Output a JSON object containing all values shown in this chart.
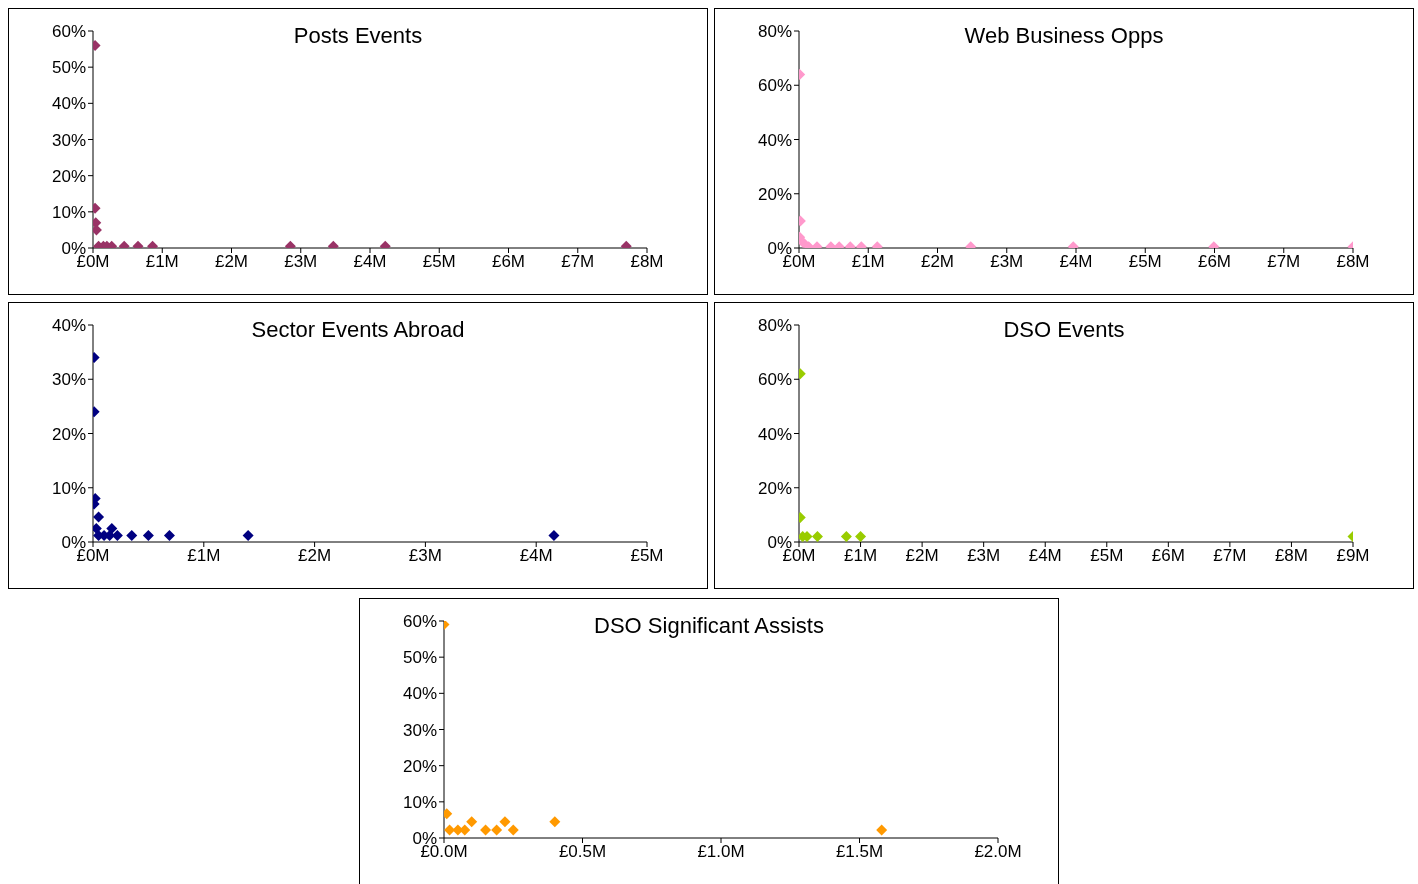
{
  "chart_data": [
    {
      "type": "scatter",
      "title": "Posts Events",
      "marker": "diamond",
      "color": "#993366",
      "x": [
        0.03,
        0.03,
        0.04,
        0.05,
        0.08,
        0.15,
        0.2,
        0.27,
        0.45,
        0.65,
        0.86,
        2.85,
        3.47,
        4.22,
        7.7
      ],
      "values": [
        56,
        11,
        7,
        5,
        0.5,
        0.5,
        0.5,
        0.5,
        0.5,
        0.5,
        0.5,
        0.5,
        0.5,
        0.5,
        0.5
      ],
      "xlim": [
        0,
        8
      ],
      "xticks": [
        {
          "value": 0,
          "label": "£0M"
        },
        {
          "value": 1,
          "label": "£1M"
        },
        {
          "value": 2,
          "label": "£2M"
        },
        {
          "value": 3,
          "label": "£3M"
        },
        {
          "value": 4,
          "label": "£4M"
        },
        {
          "value": 5,
          "label": "£5M"
        },
        {
          "value": 6,
          "label": "£6M"
        },
        {
          "value": 7,
          "label": "£7M"
        },
        {
          "value": 8,
          "label": "£8M"
        }
      ],
      "ylim": [
        0,
        60
      ],
      "yticks": [
        {
          "value": 0,
          "label": "0%"
        },
        {
          "value": 10,
          "label": "10%"
        },
        {
          "value": 20,
          "label": "20%"
        },
        {
          "value": 30,
          "label": "30%"
        },
        {
          "value": 40,
          "label": "40%"
        },
        {
          "value": 50,
          "label": "50%"
        },
        {
          "value": 60,
          "label": "60%"
        }
      ]
    },
    {
      "type": "scatter",
      "title": "Web Business Opps",
      "marker": "diamond",
      "color": "#ff99cc",
      "x": [
        0.01,
        0.02,
        0.01,
        0.06,
        0.14,
        0.26,
        0.46,
        0.58,
        0.74,
        0.9,
        1.13,
        2.48,
        3.96,
        5.99,
        8.0
      ],
      "values": [
        64,
        10,
        4,
        2,
        0.5,
        0.5,
        0.5,
        0.5,
        0.5,
        0.5,
        0.5,
        0.5,
        0.5,
        0.5,
        0.5
      ],
      "xlim": [
        0,
        8
      ],
      "xticks": [
        {
          "value": 0,
          "label": "£0M"
        },
        {
          "value": 1,
          "label": "£1M"
        },
        {
          "value": 2,
          "label": "£2M"
        },
        {
          "value": 3,
          "label": "£3M"
        },
        {
          "value": 4,
          "label": "£4M"
        },
        {
          "value": 5,
          "label": "£5M"
        },
        {
          "value": 6,
          "label": "£6M"
        },
        {
          "value": 7,
          "label": "£7M"
        },
        {
          "value": 8,
          "label": "£8M"
        }
      ],
      "ylim": [
        0,
        80
      ],
      "yticks": [
        {
          "value": 0,
          "label": "0%"
        },
        {
          "value": 20,
          "label": "20%"
        },
        {
          "value": 40,
          "label": "40%"
        },
        {
          "value": 60,
          "label": "60%"
        },
        {
          "value": 80,
          "label": "80%"
        }
      ]
    },
    {
      "type": "scatter",
      "title": "Sector Events Abroad",
      "marker": "diamond",
      "color": "#000080",
      "x": [
        0.01,
        0.01,
        0.02,
        0.01,
        0.05,
        0.03,
        0.05,
        0.1,
        0.15,
        0.22,
        0.17,
        0.35,
        0.5,
        0.69,
        1.4,
        4.16
      ],
      "values": [
        34,
        24,
        8,
        7,
        4.6,
        2.5,
        1.2,
        1.2,
        1.2,
        1.2,
        2.5,
        1.2,
        1.2,
        1.2,
        1.2,
        1.2
      ],
      "xlim": [
        0,
        5
      ],
      "xticks": [
        {
          "value": 0,
          "label": "£0M"
        },
        {
          "value": 1,
          "label": "£1M"
        },
        {
          "value": 2,
          "label": "£2M"
        },
        {
          "value": 3,
          "label": "£3M"
        },
        {
          "value": 4,
          "label": "£4M"
        },
        {
          "value": 5,
          "label": "£5M"
        }
      ],
      "ylim": [
        0,
        40
      ],
      "yticks": [
        {
          "value": 0,
          "label": "0%"
        },
        {
          "value": 10,
          "label": "10%"
        },
        {
          "value": 20,
          "label": "20%"
        },
        {
          "value": 30,
          "label": "30%"
        },
        {
          "value": 40,
          "label": "40%"
        }
      ]
    },
    {
      "type": "scatter",
      "title": "DSO Events",
      "marker": "diamond",
      "color": "#99cc00",
      "x": [
        0.02,
        0.02,
        0.06,
        0.13,
        0.3,
        0.77,
        1.0,
        9.0
      ],
      "values": [
        62,
        9,
        2,
        2,
        2,
        2,
        2,
        2
      ],
      "xlim": [
        0,
        9
      ],
      "xticks": [
        {
          "value": 0,
          "label": "£0M"
        },
        {
          "value": 1,
          "label": "£1M"
        },
        {
          "value": 2,
          "label": "£2M"
        },
        {
          "value": 3,
          "label": "£3M"
        },
        {
          "value": 4,
          "label": "£4M"
        },
        {
          "value": 5,
          "label": "£5M"
        },
        {
          "value": 6,
          "label": "£6M"
        },
        {
          "value": 7,
          "label": "£7M"
        },
        {
          "value": 8,
          "label": "£8M"
        },
        {
          "value": 9,
          "label": "£9M"
        }
      ],
      "ylim": [
        0,
        80
      ],
      "yticks": [
        {
          "value": 0,
          "label": "0%"
        },
        {
          "value": 20,
          "label": "20%"
        },
        {
          "value": 40,
          "label": "40%"
        },
        {
          "value": 60,
          "label": "60%"
        },
        {
          "value": 80,
          "label": "80%"
        }
      ]
    },
    {
      "type": "scatter",
      "title": "DSO Significant Assists",
      "marker": "diamond",
      "color": "#ff9900",
      "x": [
        0.0,
        0.01,
        0.02,
        0.05,
        0.075,
        0.1,
        0.15,
        0.19,
        0.22,
        0.25,
        0.4,
        1.58
      ],
      "values": [
        59,
        6.7,
        2.2,
        2.2,
        2.2,
        4.5,
        2.2,
        2.2,
        4.5,
        2.2,
        4.5,
        2.2
      ],
      "xlim": [
        0,
        2
      ],
      "xticks": [
        {
          "value": 0,
          "label": "£0.0M"
        },
        {
          "value": 0.5,
          "label": "£0.5M"
        },
        {
          "value": 1,
          "label": "£1.0M"
        },
        {
          "value": 1.5,
          "label": "£1.5M"
        },
        {
          "value": 2,
          "label": "£2.0M"
        }
      ],
      "ylim": [
        0,
        60
      ],
      "yticks": [
        {
          "value": 0,
          "label": "0%"
        },
        {
          "value": 10,
          "label": "10%"
        },
        {
          "value": 20,
          "label": "20%"
        },
        {
          "value": 30,
          "label": "30%"
        },
        {
          "value": 40,
          "label": "40%"
        },
        {
          "value": 50,
          "label": "50%"
        },
        {
          "value": 60,
          "label": "60%"
        }
      ]
    }
  ]
}
